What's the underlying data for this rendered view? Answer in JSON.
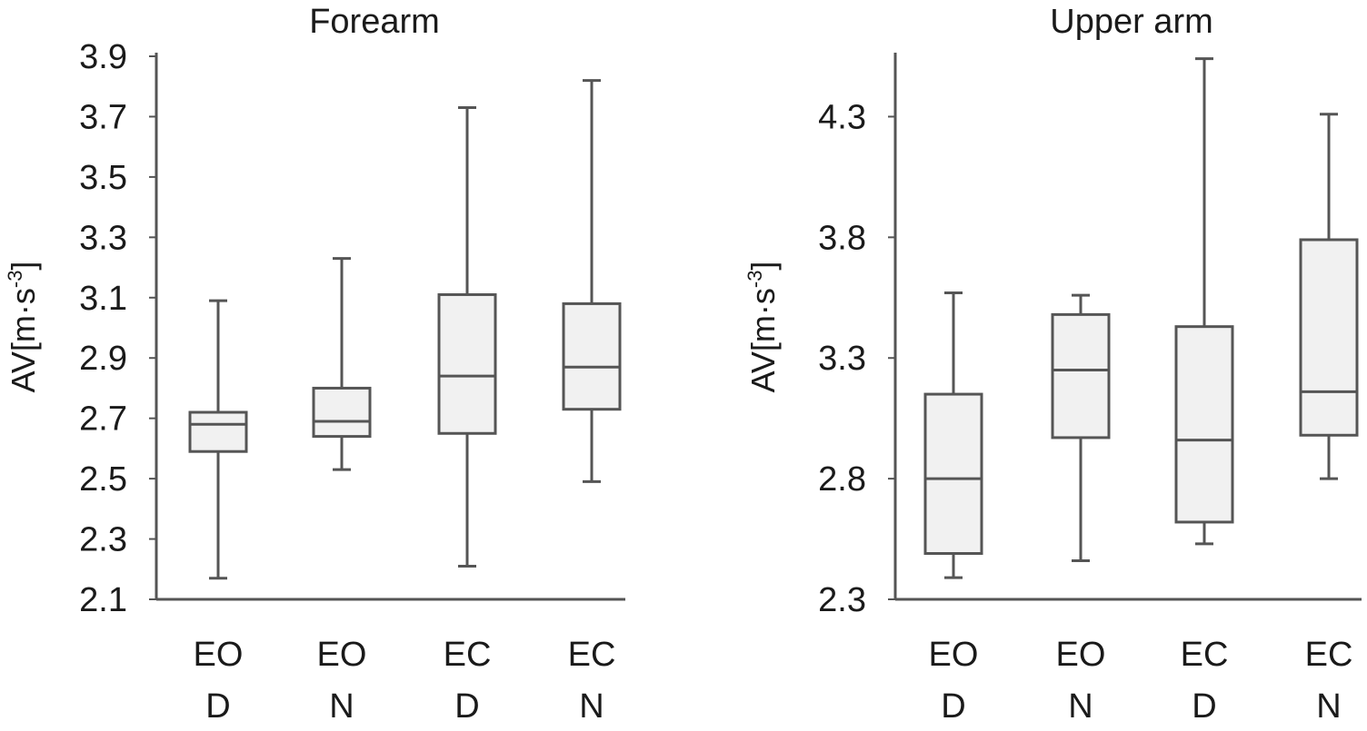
{
  "chart_data": [
    {
      "type": "box",
      "title": "Forearm",
      "ylabel": "AV[m·s-3]",
      "ylabel_main": "AV[m·s",
      "ylabel_sup": "-3",
      "ylabel_close": "]",
      "ylim": [
        2.1,
        3.9
      ],
      "yticks": [
        "2.1",
        "2.3",
        "2.5",
        "2.7",
        "2.9",
        "3.1",
        "3.3",
        "3.5",
        "3.7",
        "3.9"
      ],
      "categories": [
        {
          "line1": "EO",
          "line2": "D"
        },
        {
          "line1": "EO",
          "line2": "N"
        },
        {
          "line1": "EC",
          "line2": "D"
        },
        {
          "line1": "EC",
          "line2": "N"
        }
      ],
      "boxes": [
        {
          "min": 2.17,
          "q1": 2.59,
          "median": 2.68,
          "q3": 2.72,
          "max": 3.09
        },
        {
          "min": 2.53,
          "q1": 2.64,
          "median": 2.69,
          "q3": 2.8,
          "max": 3.23
        },
        {
          "min": 2.21,
          "q1": 2.65,
          "median": 2.84,
          "q3": 3.11,
          "max": 3.73
        },
        {
          "min": 2.49,
          "q1": 2.73,
          "median": 2.87,
          "q3": 3.08,
          "max": 3.82
        }
      ]
    },
    {
      "type": "box",
      "title": "Upper arm",
      "ylabel": "AV[m·s-3]",
      "ylabel_main": "AV[m·s",
      "ylabel_sup": "-3",
      "ylabel_close": "]",
      "ylim": [
        2.3,
        4.55
      ],
      "yticks": [
        "2.3",
        "2.8",
        "3.3",
        "3.8",
        "4.3"
      ],
      "categories": [
        {
          "line1": "EO",
          "line2": "D"
        },
        {
          "line1": "EO",
          "line2": "N"
        },
        {
          "line1": "EC",
          "line2": "D"
        },
        {
          "line1": "EC",
          "line2": "N"
        }
      ],
      "boxes": [
        {
          "min": 2.39,
          "q1": 2.49,
          "median": 2.8,
          "q3": 3.15,
          "max": 3.57
        },
        {
          "min": 2.46,
          "q1": 2.97,
          "median": 3.25,
          "q3": 3.48,
          "max": 3.56
        },
        {
          "min": 2.53,
          "q1": 2.62,
          "median": 2.96,
          "q3": 3.43,
          "max": 4.54
        },
        {
          "min": 2.8,
          "q1": 2.98,
          "median": 3.16,
          "q3": 3.79,
          "max": 4.31
        }
      ]
    }
  ]
}
